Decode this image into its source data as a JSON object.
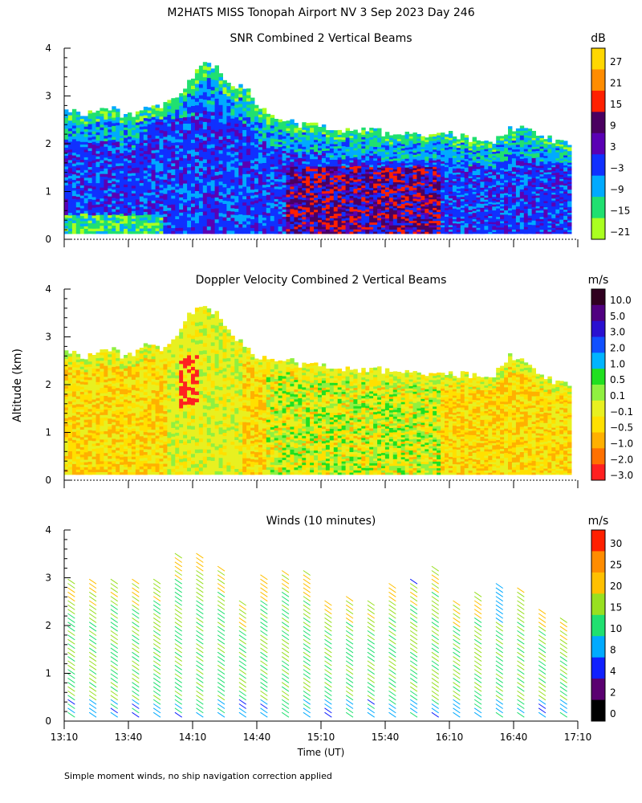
{
  "figure": {
    "title": "M2HATS MISS Tonopah Airport NV   3 Sep 2023 Day 246",
    "footnote": "Simple moment winds, no ship navigation correction applied",
    "ylabel": "Altitude (km)",
    "xlabel": "Time (UT)"
  },
  "chart_data": [
    {
      "type": "heatmap",
      "title": "SNR Combined 2 Vertical Beams",
      "colorbar_unit": "dB",
      "colorbar_labels": [
        "27",
        "21",
        "15",
        "9",
        "3",
        "−3",
        "−9",
        "−15",
        "−21"
      ],
      "colorbar_colors": [
        "#ffd700",
        "#ff8c00",
        "#ff2000",
        "#4a0060",
        "#5a00b4",
        "#1030ff",
        "#00aaff",
        "#20e070",
        "#aaff20"
      ],
      "x_range": [
        "13:10",
        "17:10"
      ],
      "x_ticks": [],
      "ylim": [
        0,
        4
      ],
      "y_ticks": [
        0,
        1,
        2,
        3,
        4
      ],
      "top_profile_km": [
        2.7,
        2.65,
        2.75,
        2.6,
        2.7,
        2.8,
        3.2,
        3.8,
        3.3,
        3.1,
        2.6,
        2.45,
        2.4,
        2.35,
        2.3,
        2.3,
        2.2,
        2.25,
        2.15,
        2.2,
        2.1,
        2.0,
        2.3,
        2.3,
        2.1,
        2.0
      ],
      "grid": false
    },
    {
      "type": "heatmap",
      "title": "Doppler Velocity Combined 2 Vertical Beams",
      "colorbar_unit": "m/s",
      "colorbar_labels": [
        "10.0",
        "5.0",
        "3.0",
        "2.0",
        "1.0",
        "0.5",
        "0.1",
        "−0.1",
        "−0.5",
        "−1.0",
        "−2.0",
        "−3.0"
      ],
      "colorbar_colors": [
        "#300020",
        "#500080",
        "#2a10d0",
        "#1050ff",
        "#00b4ff",
        "#20e020",
        "#90f040",
        "#e8f020",
        "#ffe000",
        "#ffb000",
        "#ff7000",
        "#ff2020"
      ],
      "x_range": [
        "13:10",
        "17:10"
      ],
      "x_ticks": [],
      "ylim": [
        0,
        4
      ],
      "y_ticks": [
        0,
        1,
        2,
        3,
        4
      ],
      "top_profile_km": [
        2.7,
        2.6,
        2.75,
        2.6,
        2.8,
        2.7,
        3.4,
        3.7,
        3.2,
        2.7,
        2.5,
        2.5,
        2.4,
        2.4,
        2.35,
        2.3,
        2.3,
        2.3,
        2.2,
        2.2,
        2.2,
        2.1,
        2.6,
        2.4,
        2.1,
        2.0
      ],
      "grid": false
    },
    {
      "type": "scatter",
      "title": "Winds (10 minutes)",
      "colorbar_unit": "m/s",
      "colorbar_labels": [
        "30",
        "25",
        "20",
        "15",
        "10",
        "8",
        "4",
        "2",
        "0"
      ],
      "colorbar_colors": [
        "#ff2000",
        "#ff8c00",
        "#ffc000",
        "#98e020",
        "#20e070",
        "#00aaff",
        "#1020ff",
        "#5a0070",
        "#000000"
      ],
      "x": [
        "13:15",
        "13:25",
        "13:35",
        "13:45",
        "13:55",
        "14:05",
        "14:15",
        "14:25",
        "14:35",
        "14:45",
        "14:55",
        "15:05",
        "15:15",
        "15:25",
        "15:35",
        "15:45",
        "15:55",
        "16:05",
        "16:15",
        "16:25",
        "16:35",
        "16:45",
        "16:55",
        "17:05"
      ],
      "x_range": [
        "13:10",
        "17:10"
      ],
      "x_ticks": [
        "13:10",
        "13:40",
        "14:10",
        "14:40",
        "15:10",
        "15:40",
        "16:10",
        "16:40",
        "17:10"
      ],
      "column_top_km": [
        2.9,
        2.9,
        2.9,
        2.9,
        2.95,
        3.45,
        3.45,
        3.15,
        2.45,
        3.0,
        3.1,
        3.05,
        2.5,
        2.55,
        2.5,
        2.85,
        2.9,
        3.15,
        2.45,
        2.65,
        2.8,
        2.7,
        2.3,
        2.1
      ],
      "ylim": [
        0,
        4
      ],
      "y_ticks": [
        0,
        1,
        2,
        3,
        4
      ],
      "grid": false
    }
  ]
}
